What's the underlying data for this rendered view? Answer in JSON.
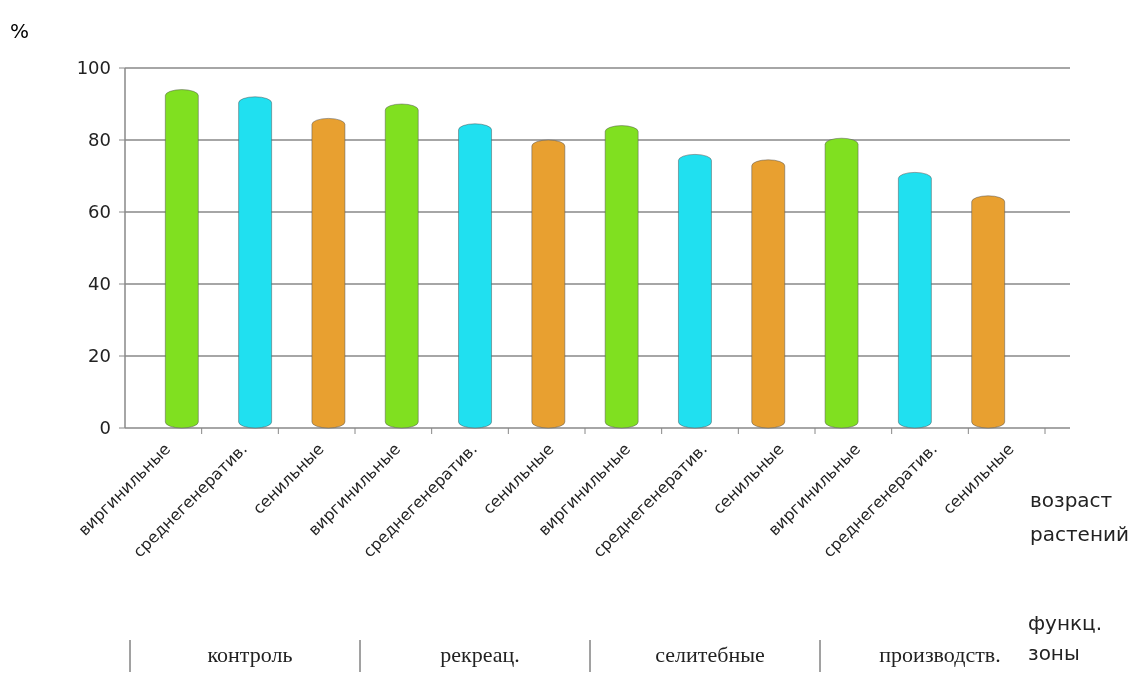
{
  "chart_data": {
    "type": "bar",
    "ylabel": "%",
    "xlabel": "возраст растений",
    "categories": [
      "виргинильные",
      "среднегенератив.",
      "сенильные",
      "виргинильные",
      "среднегенератив.",
      "сенильные",
      "виргинильные",
      "среднегенератив.",
      "сенильные",
      "виргинильные",
      "среднегенератив.",
      "сенильные"
    ],
    "values": [
      94,
      92,
      86,
      90,
      84.5,
      80,
      84,
      76,
      74.5,
      80.5,
      71,
      64.5
    ],
    "colors": [
      "#80e020",
      "#20e0f0",
      "#e8a030",
      "#80e020",
      "#20e0f0",
      "#e8a030",
      "#80e020",
      "#20e0f0",
      "#e8a030",
      "#80e020",
      "#20e0f0",
      "#e8a030"
    ],
    "ylim": [
      0,
      100
    ],
    "yticks": [
      0,
      20,
      40,
      60,
      80,
      100
    ],
    "grid": "y",
    "annotations": [
      "контроль",
      "рекреац.",
      "селитебные",
      "производств.",
      "функц. зоны"
    ]
  }
}
